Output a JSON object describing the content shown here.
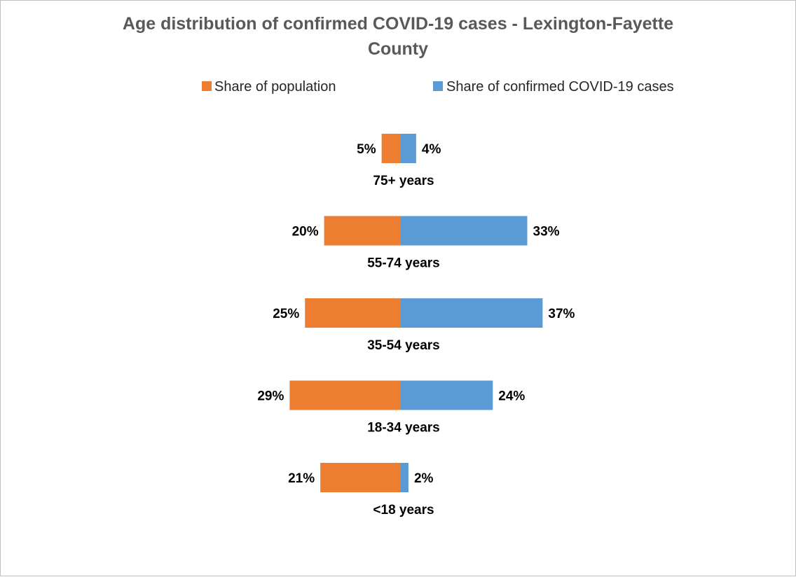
{
  "chart_data": {
    "type": "bar",
    "orientation": "horizontal-diverging",
    "title_lines": [
      "Age distribution of confirmed COVID-19 cases -  Lexington-Fayette",
      "County"
    ],
    "categories": [
      "75+ years",
      "55-74 years",
      "35-54 years",
      "18-34 years",
      "<18 years"
    ],
    "series": [
      {
        "name": "Share of population",
        "color": "#ed7d31",
        "values": [
          5,
          20,
          25,
          29,
          21
        ],
        "labels": [
          "5%",
          "20%",
          "25%",
          "29%",
          "21%"
        ],
        "direction": "left"
      },
      {
        "name": "Share of confirmed COVID-19 cases",
        "color": "#5b9bd5",
        "values": [
          4,
          33,
          37,
          24,
          2
        ],
        "labels": [
          "4%",
          "33%",
          "37%",
          "24%",
          "2%"
        ],
        "direction": "right"
      }
    ],
    "unit": "%",
    "legend_position": "top",
    "grid": false
  }
}
